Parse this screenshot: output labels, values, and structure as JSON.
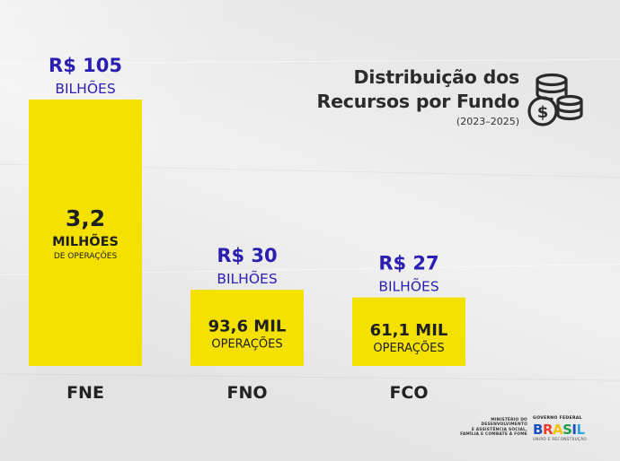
{
  "title": {
    "line1": "Distribuição dos",
    "line2": "Recursos por Fundo",
    "period": "(2023–2025)"
  },
  "icon": "coins-dollar-icon",
  "colors": {
    "bar": "#f4e100",
    "value_text": "#2a1fb0",
    "label_text": "#222222"
  },
  "chart_data": {
    "type": "bar",
    "categories": [
      "FNE",
      "FNO",
      "FCO"
    ],
    "values": [
      105,
      30,
      27
    ],
    "value_labels": [
      "R$ 105",
      "R$ 30",
      "R$ 27"
    ],
    "unit_label": "BILHÕES",
    "operations": [
      {
        "main": "3,2",
        "unit": "MILHÕES",
        "sub": "DE OPERAÇÕES"
      },
      {
        "main": "93,6 MIL",
        "sub": "OPERAÇÕES"
      },
      {
        "main": "61,1 MIL",
        "sub": "OPERAÇÕES"
      }
    ],
    "ylim": [
      0,
      105
    ],
    "grid": false,
    "legend": "none"
  },
  "footer": {
    "ministry_lines": [
      "MINISTÉRIO DO",
      "DESENVOLVIMENTO",
      "E ASSISTÊNCIA SOCIAL,",
      "FAMÍLIA E COMBATE À FOME"
    ],
    "gov_label": "GOVERNO FEDERAL",
    "brasil_letters": [
      "B",
      "R",
      "A",
      "S",
      "I",
      "L"
    ],
    "slogan": "UNIÃO E RECONSTRUÇÃO"
  }
}
